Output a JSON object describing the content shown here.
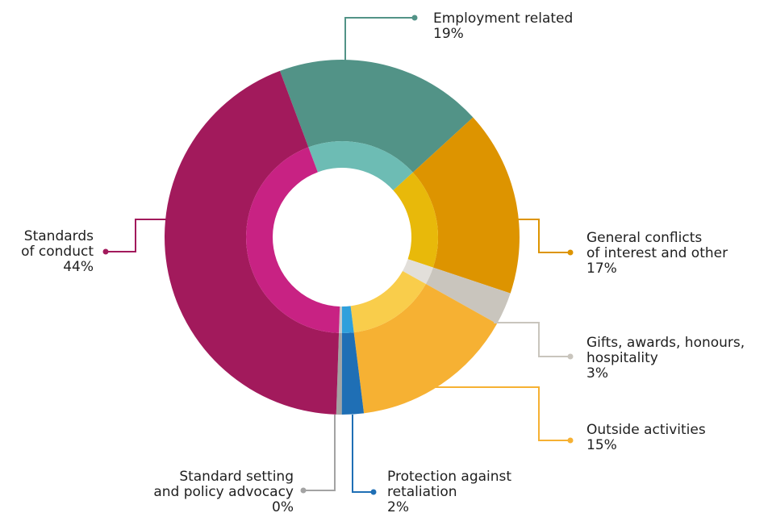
{
  "chart_data": {
    "type": "pie",
    "style": "donut-with-inner-ring",
    "title": "",
    "unit": "%",
    "legend": "none (callout labels)",
    "slices": [
      {
        "key": "employment",
        "label_lines": [
          "Employment related"
        ],
        "value": 19,
        "value_label": "19%",
        "color": "#529387",
        "inner_color": "#6dbcb4"
      },
      {
        "key": "general",
        "label_lines": [
          "General conflicts",
          "of interest and other"
        ],
        "value": 17,
        "value_label": "17%",
        "color": "#dd9400",
        "inner_color": "#e8b90a"
      },
      {
        "key": "gifts",
        "label_lines": [
          "Gifts, awards, honours,",
          "hospitality"
        ],
        "value": 3,
        "value_label": "3%",
        "color": "#c9c5bd",
        "inner_color": "#e2dfda"
      },
      {
        "key": "outside",
        "label_lines": [
          "Outside activities"
        ],
        "value": 15,
        "value_label": "15%",
        "color": "#f6b133",
        "inner_color": "#f9cd4b"
      },
      {
        "key": "protection",
        "label_lines": [
          "Protection against",
          "retaliation"
        ],
        "value": 2,
        "value_label": "2%",
        "color": "#1f6fb5",
        "inner_color": "#2fa0dc"
      },
      {
        "key": "standard_setting",
        "label_lines": [
          "Standard setting",
          "and policy advocacy"
        ],
        "value": 0.5,
        "value_label": "0%",
        "color": "#a3a3a3",
        "inner_color": "#c7c7c7"
      },
      {
        "key": "standards",
        "label_lines": [
          "Standards",
          "of conduct"
        ],
        "value": 44,
        "value_label": "44%",
        "color": "#a21a5c",
        "inner_color": "#c82283"
      }
    ]
  }
}
